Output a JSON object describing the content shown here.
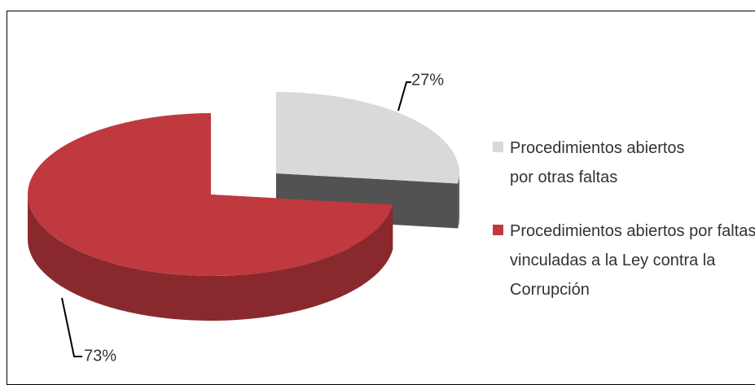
{
  "chart_data": {
    "type": "pie",
    "categories": [
      "Procedimientos abiertos por otras faltas",
      "Procedimientos abiertos por faltas vinculadas a la Ley contra la Corrupción"
    ],
    "values": [
      27,
      73
    ],
    "value_labels": [
      "27%",
      "73%"
    ],
    "colors": [
      "#d9d9d9",
      "#c0393f"
    ],
    "legend": "right"
  }
}
